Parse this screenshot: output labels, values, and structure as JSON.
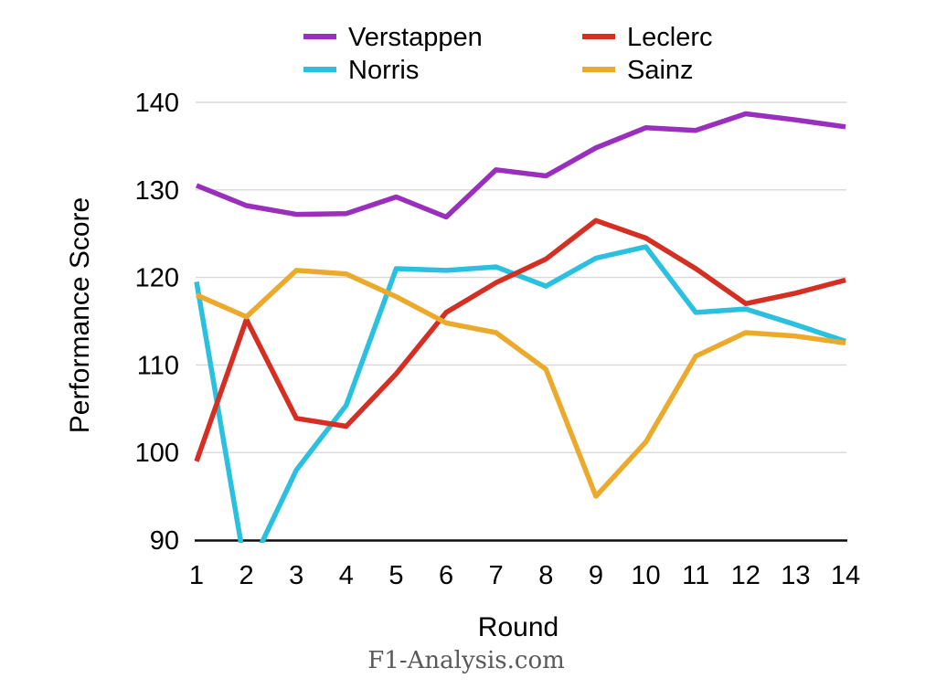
{
  "footer": {
    "watermark": "F1-Analysis.com"
  },
  "chart_data": {
    "type": "line",
    "title": "",
    "xlabel": "Round",
    "ylabel": "Performance Score",
    "x": [
      1,
      2,
      3,
      4,
      5,
      6,
      7,
      8,
      9,
      10,
      11,
      12,
      13,
      14
    ],
    "xticks": [
      "1",
      "2",
      "3",
      "4",
      "5",
      "6",
      "7",
      "8",
      "9",
      "10",
      "11",
      "12",
      "13",
      "14"
    ],
    "ylim": [
      90,
      140
    ],
    "yticks": [
      90,
      100,
      110,
      120,
      130,
      140
    ],
    "grid": true,
    "legend_position": "top-center-two-columns",
    "colors": {
      "grid": "#d8d8d8",
      "axis": "#0d0d0d",
      "text": "#000000",
      "watermark": "#595959"
    },
    "series": [
      {
        "name": "Verstappen",
        "color": "#9a2fbe",
        "values": [
          130.5,
          128.2,
          127.2,
          127.3,
          129.2,
          126.9,
          132.3,
          131.6,
          134.8,
          137.1,
          136.8,
          138.7,
          138.0,
          137.2
        ]
      },
      {
        "name": "Leclerc",
        "color": "#d52e23",
        "values": [
          99.0,
          115.2,
          103.9,
          103.0,
          109.0,
          116.0,
          119.4,
          122.1,
          126.5,
          124.5,
          121.0,
          117.0,
          118.2,
          119.7
        ]
      },
      {
        "name": "Norris",
        "color": "#2bbfe0",
        "values": [
          119.5,
          86.0,
          98.0,
          105.4,
          121.0,
          120.8,
          121.2,
          119.0,
          122.2,
          123.5,
          116.0,
          116.4,
          114.6,
          112.7
        ]
      },
      {
        "name": "Sainz",
        "color": "#ecaa2d",
        "values": [
          118.0,
          115.5,
          120.8,
          120.4,
          117.8,
          114.8,
          113.7,
          109.5,
          95.0,
          101.2,
          111.0,
          113.7,
          113.3,
          112.5
        ]
      }
    ]
  }
}
